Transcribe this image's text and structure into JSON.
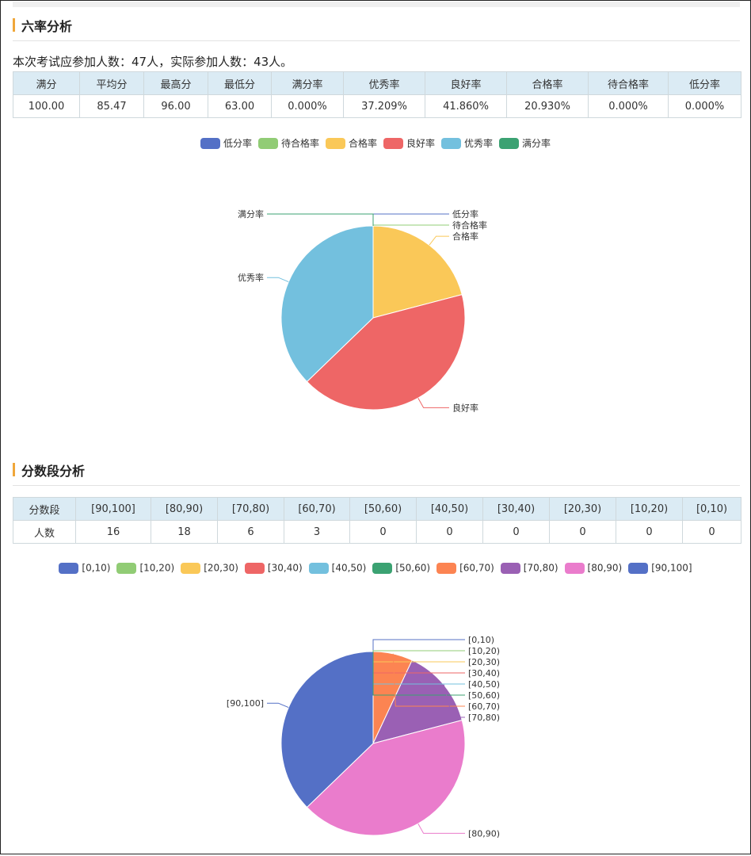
{
  "section1": {
    "title": "六率分析",
    "summary": "本次考试应参加人数：47人，实际参加人数：43人。",
    "table": {
      "headers": [
        "满分",
        "平均分",
        "最高分",
        "最低分",
        "满分率",
        "优秀率",
        "良好率",
        "合格率",
        "待合格率",
        "低分率"
      ],
      "values": [
        "100.00",
        "85.47",
        "96.00",
        "63.00",
        "0.000%",
        "37.209%",
        "41.860%",
        "20.930%",
        "0.000%",
        "0.000%"
      ]
    }
  },
  "section2": {
    "title": "分数段分析",
    "table": {
      "headers": [
        "分数段",
        "[90,100]",
        "[80,90)",
        "[70,80)",
        "[60,70)",
        "[50,60)",
        "[40,50)",
        "[30,40)",
        "[20,30)",
        "[10,20)",
        "[0,10)"
      ],
      "values": [
        "人数",
        "16",
        "18",
        "6",
        "3",
        "0",
        "0",
        "0",
        "0",
        "0",
        "0"
      ]
    }
  },
  "chart_data": [
    {
      "type": "pie",
      "legend_position": "top",
      "categories": [
        "低分率",
        "待合格率",
        "合格率",
        "良好率",
        "优秀率",
        "满分率"
      ],
      "values": [
        0,
        0,
        20.93,
        41.86,
        37.209,
        0
      ],
      "colors": [
        "#5470c6",
        "#91cc75",
        "#fac858",
        "#ee6666",
        "#73c0de",
        "#3ba272"
      ]
    },
    {
      "type": "pie",
      "legend_position": "top",
      "categories": [
        "[0,10)",
        "[10,20)",
        "[20,30)",
        "[30,40)",
        "[40,50)",
        "[50,60)",
        "[60,70)",
        "[70,80)",
        "[80,90)",
        "[90,100]"
      ],
      "values": [
        0,
        0,
        0,
        0,
        0,
        0,
        3,
        6,
        18,
        16
      ],
      "colors": [
        "#5470c6",
        "#91cc75",
        "#fac858",
        "#ee6666",
        "#73c0de",
        "#3ba272",
        "#fc8452",
        "#9a60b4",
        "#ea7ccc",
        "#5470c6"
      ]
    }
  ]
}
